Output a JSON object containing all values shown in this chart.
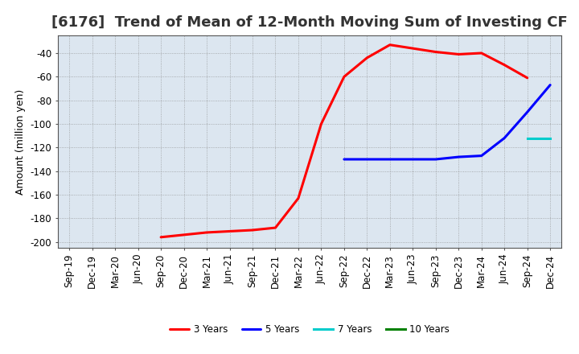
{
  "title": "[6176]  Trend of Mean of 12-Month Moving Sum of Investing CF",
  "ylabel": "Amount (million yen)",
  "background_color": "#ffffff",
  "plot_background": "#dce6f0",
  "ylim": [
    -205,
    -25
  ],
  "yticks": [
    -200,
    -180,
    -160,
    -140,
    -120,
    -100,
    -80,
    -60,
    -40
  ],
  "x_labels": [
    "Sep-19",
    "Dec-19",
    "Mar-20",
    "Jun-20",
    "Sep-20",
    "Dec-20",
    "Mar-21",
    "Jun-21",
    "Sep-21",
    "Dec-21",
    "Mar-22",
    "Jun-22",
    "Sep-22",
    "Dec-22",
    "Mar-23",
    "Jun-23",
    "Sep-23",
    "Dec-23",
    "Mar-24",
    "Jun-24",
    "Sep-24",
    "Dec-24"
  ],
  "series_3yr": {
    "label": "3 Years",
    "color": "#ff0000",
    "values": [
      null,
      null,
      null,
      null,
      -196,
      -194,
      -192,
      -191,
      -190,
      -188,
      -163,
      -100,
      -60,
      -44,
      -33,
      -36,
      -39,
      -41,
      -40,
      -50,
      -61,
      null
    ]
  },
  "series_5yr": {
    "label": "5 Years",
    "color": "#0000ff",
    "values": [
      null,
      null,
      null,
      null,
      null,
      null,
      null,
      null,
      null,
      null,
      null,
      null,
      -130,
      -130,
      -130,
      -130,
      -130,
      -128,
      -127,
      -112,
      -90,
      -67
    ]
  },
  "series_7yr": {
    "label": "7 Years",
    "color": "#00cccc",
    "values": [
      null,
      null,
      null,
      null,
      null,
      null,
      null,
      null,
      null,
      null,
      null,
      null,
      null,
      null,
      null,
      null,
      null,
      null,
      null,
      null,
      -112,
      -112
    ]
  },
  "series_10yr": {
    "label": "10 Years",
    "color": "#008000",
    "values": []
  },
  "title_fontsize": 13,
  "axis_fontsize": 9,
  "tick_fontsize": 8.5
}
